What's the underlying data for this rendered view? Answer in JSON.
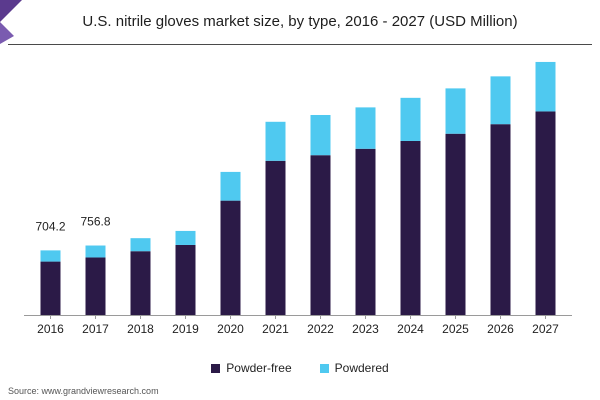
{
  "header": {
    "title": "U.S. nitrile gloves market size, by type, 2016 - 2027 (USD Million)"
  },
  "chart_data": {
    "type": "bar",
    "stacked": true,
    "title": "U.S. nitrile gloves market size, by type, 2016 - 2027 (USD Million)",
    "xlabel": "",
    "ylabel": "",
    "ylim": [
      0,
      2800
    ],
    "grid": false,
    "legend": "bottom",
    "categories": [
      "2016",
      "2017",
      "2018",
      "2019",
      "2020",
      "2021",
      "2022",
      "2023",
      "2024",
      "2025",
      "2026",
      "2027"
    ],
    "series": [
      {
        "name": "Powder-free",
        "color": "#2b1a47",
        "values": [
          582,
          627,
          695,
          763,
          1246,
          1680,
          1741,
          1811,
          1896,
          1975,
          2079,
          2218
        ]
      },
      {
        "name": "Powdered",
        "color": "#4fc9f0",
        "values": [
          122,
          130,
          142,
          153,
          313,
          425,
          438,
          451,
          470,
          494,
          521,
          539
        ]
      }
    ],
    "data_labels": [
      {
        "category": "2016",
        "text": "704.2"
      },
      {
        "category": "2017",
        "text": "756.8"
      }
    ]
  },
  "legend": {
    "items": [
      {
        "label": "Powder-free",
        "color": "#2b1a47"
      },
      {
        "label": "Powdered",
        "color": "#4fc9f0"
      }
    ]
  },
  "footer": {
    "source": "Source: www.grandviewresearch.com"
  }
}
